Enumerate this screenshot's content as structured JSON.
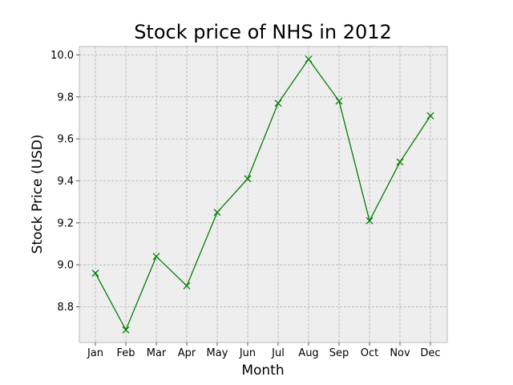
{
  "chart_data": {
    "type": "line",
    "title": "Stock price of NHS in 2012",
    "xlabel": "Month",
    "ylabel": "Stock Price (USD)",
    "categories": [
      "Jan",
      "Feb",
      "Mar",
      "Apr",
      "May",
      "Jun",
      "Jul",
      "Aug",
      "Sep",
      "Oct",
      "Nov",
      "Dec"
    ],
    "series": [
      {
        "values": [
          8.96,
          8.69,
          9.04,
          8.9,
          9.25,
          9.41,
          9.77,
          9.98,
          9.78,
          9.21,
          9.49,
          9.71
        ],
        "color": "#008000",
        "marker": "x"
      }
    ],
    "ylim": [
      8.63,
      10.04
    ],
    "yticks": [
      "8.8",
      "9.0",
      "9.2",
      "9.4",
      "9.6",
      "9.8",
      "10.0"
    ],
    "grid": true,
    "plot_background": "#eeeeee"
  }
}
